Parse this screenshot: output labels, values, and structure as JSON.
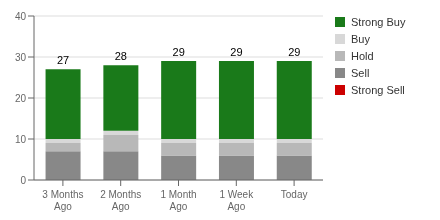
{
  "chart_data": {
    "type": "bar",
    "stacked": true,
    "categories": [
      "3 Months\nAgo",
      "2 Months\nAgo",
      "1 Month\nAgo",
      "1 Week\nAgo",
      "Today"
    ],
    "series": [
      {
        "name": "Strong Sell",
        "color": "#cc0000",
        "values": [
          0,
          0,
          0,
          0,
          0
        ]
      },
      {
        "name": "Sell",
        "color": "#888888",
        "values": [
          7,
          7,
          6,
          6,
          6
        ]
      },
      {
        "name": "Hold",
        "color": "#b8b8b8",
        "values": [
          2,
          4,
          3,
          3,
          3
        ]
      },
      {
        "name": "Buy",
        "color": "#d8d8d8",
        "values": [
          1,
          1,
          1,
          1,
          1
        ]
      },
      {
        "name": "Strong Buy",
        "color": "#1a7a1a",
        "values": [
          17,
          16,
          19,
          19,
          19
        ]
      }
    ],
    "totals": [
      27,
      28,
      29,
      29,
      29
    ],
    "ylim": [
      0,
      40
    ],
    "yticks": [
      0,
      10,
      20,
      30,
      40
    ],
    "grid": true,
    "legend": "right"
  }
}
